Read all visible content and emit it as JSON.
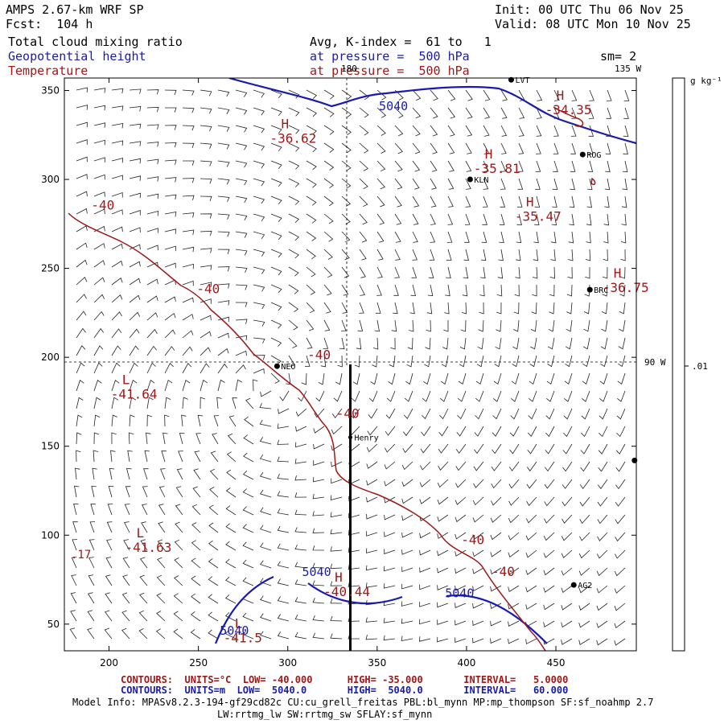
{
  "header": {
    "title": "AMPS 2.67-km WRF SP",
    "fcst": "Fcst:  104 h",
    "init": "Init: 00 UTC Thu 06 Nov 25",
    "valid": "Valid: 08 UTC Mon 10 Nov 25",
    "field1": "Total cloud mixing ratio",
    "field2": "Geopotential height",
    "field3": "Temperature",
    "avg": "Avg, K-index =  61 to   1",
    "pressure_blue": "at pressure =  500 hPa",
    "pressure_red": "at pressure =  500 hPa",
    "smoothing": "sm= 2"
  },
  "map_labels": {
    "lon_135": "135 W",
    "lon_90": "90 W",
    "lon_180": "180",
    "colorbar_unit": "g kg⁻¹",
    "colorbar_tick": ".01"
  },
  "footer": {
    "contours_red": "CONTOURS:  UNITS=°C  LOW= -40.000      HIGH= -35.000       INTERVAL=   5.0000",
    "contours_blue": "CONTOURS:  UNITS=m  LOW=  5040.0       HIGH=  5040.0       INTERVAL=   60.000",
    "model_info": "Model Info: MPASv8.2.3-194-gf29cd82c CU:cu_grell_freitas PBL:bl_mynn MP:mp_thompson SF:sf_noahmp 2.7",
    "model_info2": "LW:rrtmg_lw SW:rrtmg_sw SFLAY:sf_mynn"
  },
  "colors": {
    "temperature": "#a01818",
    "height": "#1a1ab0",
    "barb": "#000000"
  },
  "chart_data": {
    "type": "contour-map",
    "title": "AMPS 2.67-km WRF SP",
    "xlim": [
      175,
      495
    ],
    "ylim": [
      35,
      357
    ],
    "x_ticks": [
      200,
      250,
      300,
      350,
      400,
      450
    ],
    "y_ticks": [
      50,
      100,
      150,
      200,
      250,
      300,
      350
    ],
    "temperature_labels": [
      {
        "text": "-40",
        "x": 190,
        "y": 283
      },
      {
        "text": "-40",
        "x": 249,
        "y": 236
      },
      {
        "text": "-40",
        "x": 311,
        "y": 199
      },
      {
        "text": "-40",
        "x": 327,
        "y": 166
      },
      {
        "text": "-40",
        "x": 397,
        "y": 95
      },
      {
        "text": "-40",
        "x": 414,
        "y": 77
      }
    ],
    "height_labels": [
      {
        "text": "5040",
        "x": 351,
        "y": 339
      },
      {
        "text": "5040",
        "x": 308,
        "y": 77
      },
      {
        "text": "5040",
        "x": 388,
        "y": 65
      },
      {
        "text": "5040",
        "x": 262,
        "y": 44
      }
    ],
    "extrema": [
      {
        "kind": "H",
        "value": "-36.62",
        "x": 290,
        "y": 327,
        "color": "red"
      },
      {
        "kind": "H",
        "value": "-35.81",
        "x": 404,
        "y": 310,
        "color": "red"
      },
      {
        "kind": "H",
        "value": "-35.47",
        "x": 427,
        "y": 283,
        "color": "red"
      },
      {
        "kind": "H",
        "value": "-34.35",
        "x": 444,
        "y": 343,
        "color": "red"
      },
      {
        "kind": "H",
        "value": "-36.75",
        "x": 476,
        "y": 243,
        "color": "red"
      },
      {
        "kind": "L",
        "value": "-41.64",
        "x": 201,
        "y": 183,
        "color": "red"
      },
      {
        "kind": "L",
        "value": "-41.63",
        "x": 209,
        "y": 97,
        "color": "red"
      },
      {
        "kind": "H",
        "value": "-40.44",
        "x": 320,
        "y": 72,
        "color": "red"
      },
      {
        "kind": "L",
        "value": "-41.5",
        "x": 264,
        "y": 46,
        "color": "red"
      }
    ],
    "stations": [
      {
        "name": "NEO",
        "x": 294,
        "y": 195
      },
      {
        "name": "Henry",
        "x": 335,
        "y": 155
      },
      {
        "name": "KLN",
        "x": 402,
        "y": 300
      },
      {
        "name": "ROG",
        "x": 465,
        "y": 314
      },
      {
        "name": "BRC",
        "x": 469,
        "y": 238
      },
      {
        "name": "AG2",
        "x": 460,
        "y": 72
      },
      {
        "name": "LVT",
        "x": 425,
        "y": 356
      },
      {
        "name": "",
        "x": 494,
        "y": 142
      }
    ],
    "cross_section": {
      "x": 335,
      "y_from": 196,
      "y_to": 35
    },
    "edge_value": ".17"
  }
}
